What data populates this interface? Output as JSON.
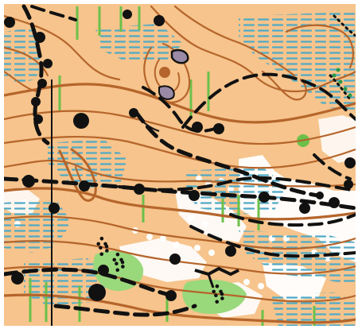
{
  "map": {
    "colors": {
      "open_land": "#f6c48c",
      "forest": "#ffffff",
      "contour": "#b5652b",
      "marsh": "#4fa9c6",
      "vegetation_line": "#6cc04a",
      "vegetation_patch": "#9ad87c",
      "path": "#111111",
      "boulder": "#111111",
      "pit": "#b5652b",
      "rock": "#9a8aa6"
    },
    "features": {
      "contour_lines": "contour",
      "marsh_areas": "marsh",
      "dashed_paths": "path",
      "boulders": "boulder",
      "vegetation_stripes": "undergrowth",
      "open_patches": "forest"
    }
  }
}
